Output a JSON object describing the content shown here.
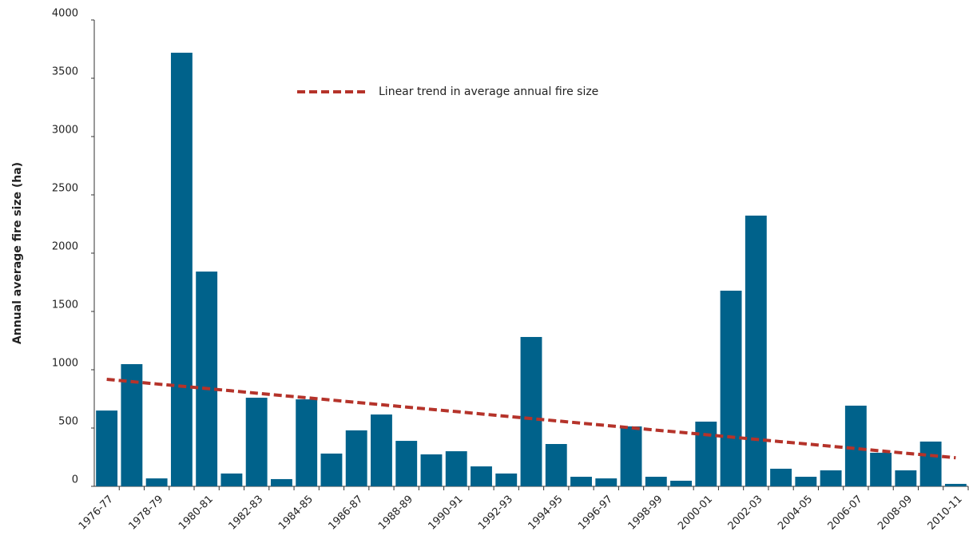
{
  "chart_data": {
    "type": "bar",
    "y_label": "Annual average fire size (ha)",
    "categories": [
      "1976-77",
      null,
      "1978-79",
      null,
      "1980-81",
      null,
      "1982-83",
      null,
      "1984-85",
      null,
      "1986-87",
      null,
      "1988-89",
      null,
      "1990-91",
      null,
      "1992-93",
      null,
      "1994-95",
      null,
      "1996-97",
      null,
      "1998-99",
      null,
      "2000-01",
      null,
      "2002-03",
      null,
      "2004-05",
      null,
      "2006-07",
      null,
      "2008-09",
      null,
      "2010-11"
    ],
    "series": [
      {
        "type": "bar",
        "color": "#00628b",
        "values": [
          650,
          1048,
          68,
          3719,
          1842,
          110,
          760,
          62,
          746,
          281,
          480,
          616,
          390,
          274,
          301,
          171,
          110,
          1281,
          363,
          82,
          68,
          514,
          82,
          48,
          555,
          1678,
          2322,
          151,
          82,
          137,
          692,
          288,
          137,
          384,
          21
        ]
      },
      {
        "type": "line",
        "name": "Linear trend in average annual fire size",
        "color": "#b5332a",
        "dashed": true,
        "values": [
          918,
          898,
          878,
          859,
          839,
          819,
          799,
          779,
          760,
          740,
          720,
          700,
          680,
          660,
          641,
          621,
          601,
          581,
          562,
          542,
          522,
          502,
          482,
          463,
          443,
          423,
          403,
          383,
          364,
          344,
          324,
          304,
          284,
          265,
          245
        ]
      }
    ],
    "ylim": [
      0,
      4000
    ],
    "yticks": [
      0,
      500,
      1000,
      1500,
      2000,
      2500,
      3000,
      3500,
      4000
    ],
    "grid": false
  }
}
